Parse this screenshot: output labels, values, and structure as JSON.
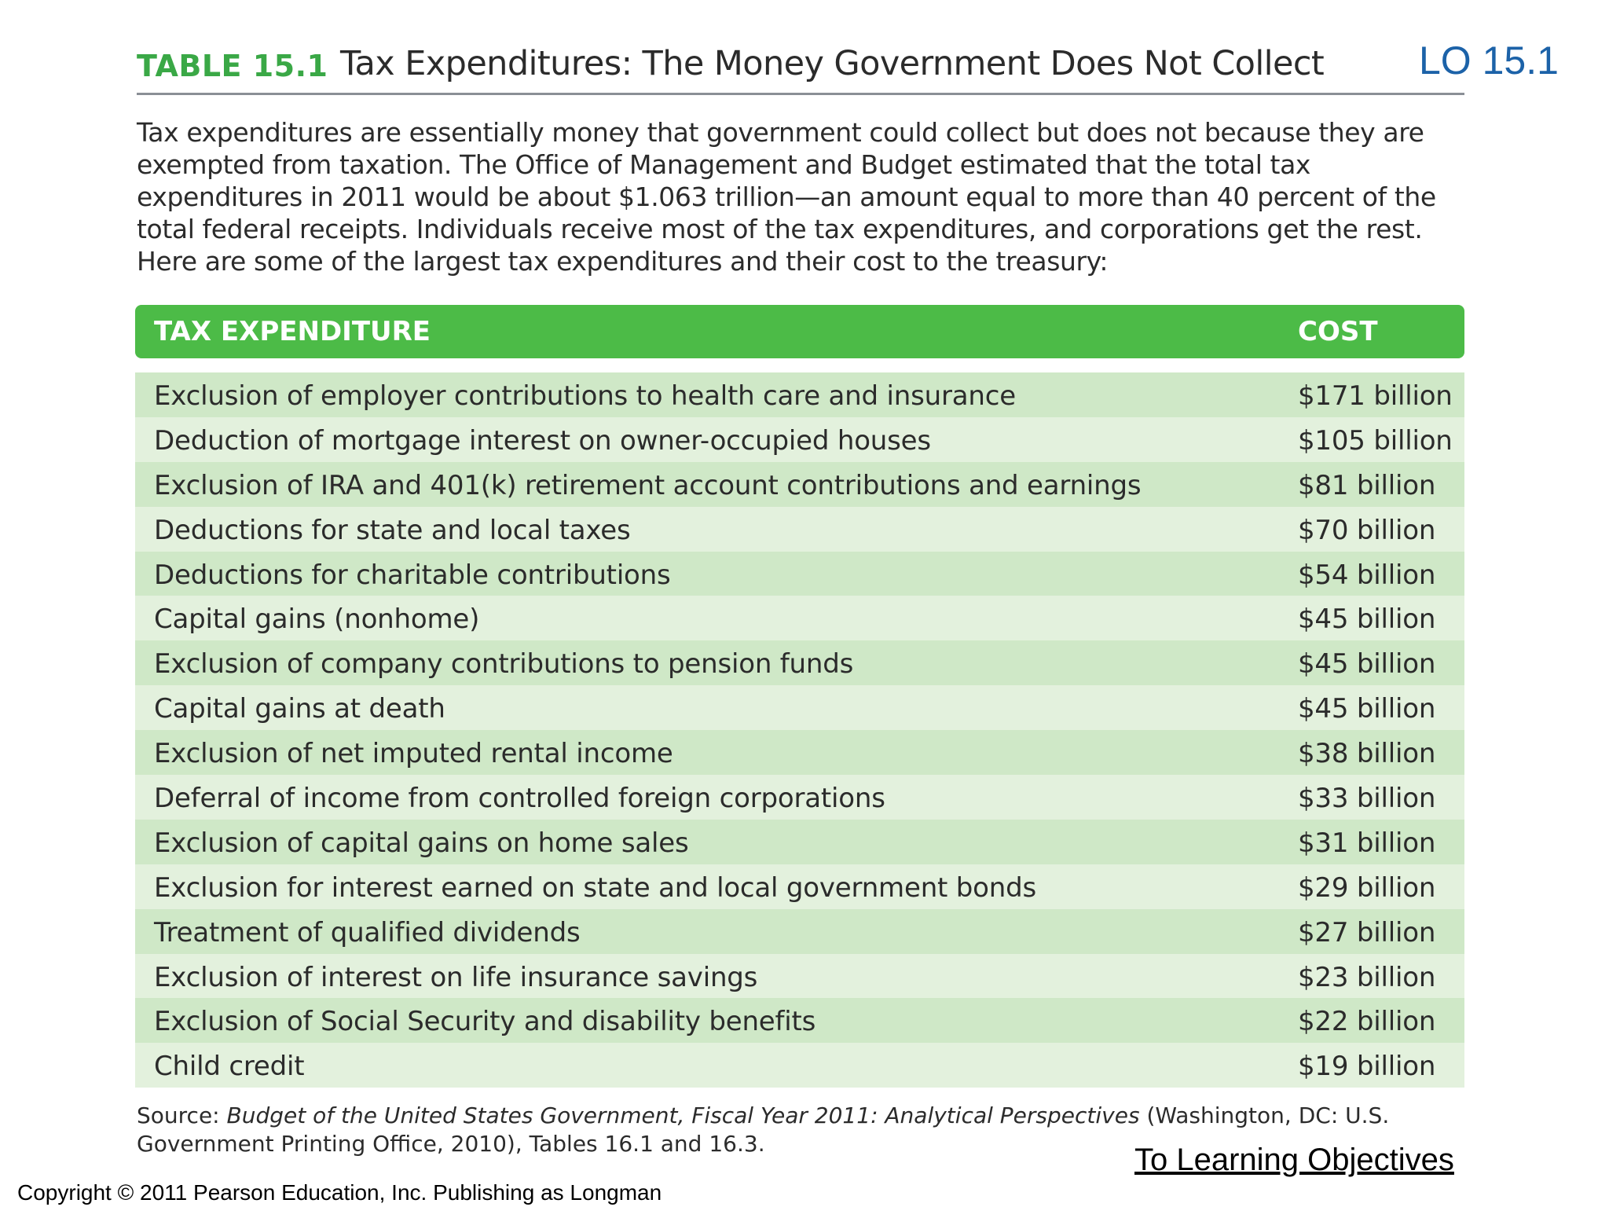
{
  "header": {
    "table_label": "TABLE 15.1",
    "table_title": "Tax Expenditures: The Money Government Does Not Collect",
    "lo_label": "LO 15.1"
  },
  "intro": "Tax expenditures are essentially money that government could collect but does not because they are exempted from taxation. The Office of Management and Budget estimated that the total tax expenditures in 2011 would be about $1.063 trillion—an amount equal to more than 40 percent of the total federal receipts. Individuals receive most of the tax expenditures, and corporations get the rest. Here are some of the largest tax expenditures and their cost to the treasury:",
  "table": {
    "columns": [
      "TAX EXPENDITURE",
      "COST"
    ],
    "rows": [
      {
        "name": "Exclusion of employer contributions to health care and insurance",
        "cost": "$171 billion"
      },
      {
        "name": "Deduction of mortgage interest on owner-occupied houses",
        "cost": "$105 billion"
      },
      {
        "name": "Exclusion of IRA and 401(k) retirement account contributions and earnings",
        "cost": "$81 billion"
      },
      {
        "name": "Deductions for state and local taxes",
        "cost": "$70 billion"
      },
      {
        "name": "Deductions for charitable contributions",
        "cost": "$54 billion"
      },
      {
        "name": "Capital gains (nonhome)",
        "cost": "$45 billion"
      },
      {
        "name": "Exclusion of company contributions to pension funds",
        "cost": "$45 billion"
      },
      {
        "name": "Capital gains at death",
        "cost": "$45 billion"
      },
      {
        "name": "Exclusion of net imputed rental income",
        "cost": "$38 billion"
      },
      {
        "name": "Deferral of income from controlled foreign corporations",
        "cost": "$33 billion"
      },
      {
        "name": "Exclusion of capital gains on home sales",
        "cost": "$31 billion"
      },
      {
        "name": "Exclusion for interest earned on state and local government bonds",
        "cost": "$29 billion"
      },
      {
        "name": "Treatment of qualified dividends",
        "cost": "$27 billion"
      },
      {
        "name": "Exclusion of interest on life insurance savings",
        "cost": "$23 billion"
      },
      {
        "name": "Exclusion of Social Security and disability benefits",
        "cost": "$22 billion"
      },
      {
        "name": "Child credit",
        "cost": "$19 billion"
      }
    ]
  },
  "source": {
    "prefix": "Source: ",
    "italic": "Budget of the United States Government, Fiscal Year 2011: Analytical Perspectives",
    "suffix": " (Washington, DC: U.S. Government Printing Office, 2010), Tables 16.1 and 16.3."
  },
  "link_label": "To Learning Objectives",
  "copyright": "Copyright © 2011 Pearson Education, Inc. Publishing as Longman",
  "colors": {
    "header_green": "#4cbb47",
    "label_green": "#3aa846",
    "row_dark": "#cfe8c7",
    "row_light": "#e3f1dd",
    "lo_blue": "#1c62a8"
  }
}
